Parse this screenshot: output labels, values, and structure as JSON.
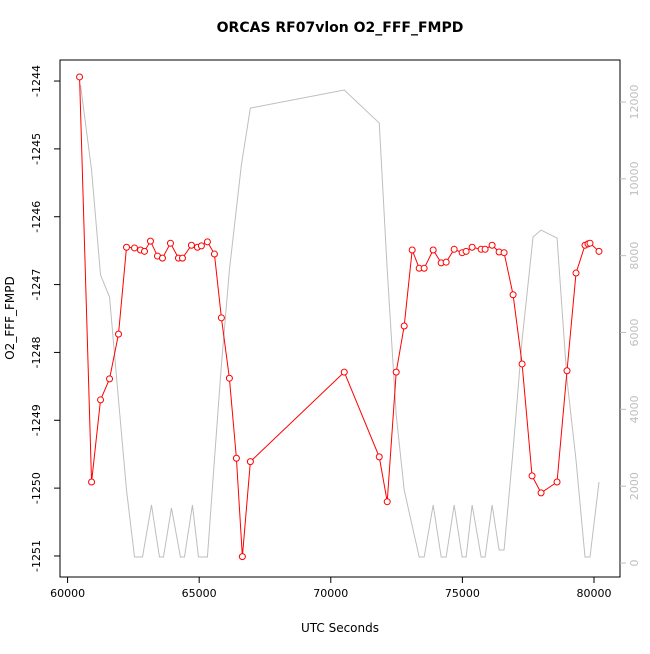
{
  "chart_data": {
    "type": "line",
    "title": "ORCAS RF07vlon O2_FFF_FMPD",
    "x_label": "UTC Seconds",
    "y_label": "O2_FFF_FMPD",
    "xlim": [
      59712,
      80988
    ],
    "xticks": [
      60000,
      65000,
      70000,
      75000,
      80000
    ],
    "ylim": [
      -1251.31,
      -1243.69
    ],
    "yticks": [
      -1251,
      -1250,
      -1249,
      -1248,
      -1247,
      -1246,
      -1245,
      -1244
    ],
    "y2lim": [
      -364,
      13093
    ],
    "y2ticks": [
      0,
      2000,
      4000,
      6000,
      8000,
      10000,
      12000
    ],
    "y2color": "#bebebe",
    "series": [
      {
        "color": "#bebebe",
        "axis": "y2",
        "markers": false,
        "x": [
          60493,
          60911,
          61252,
          61594,
          61935,
          62239,
          62543,
          62846,
          63188,
          63491,
          63643,
          63947,
          64288,
          64440,
          64744,
          64972,
          65313,
          65579,
          65844,
          66148,
          66603,
          66945,
          70512,
          71841,
          72144,
          72486,
          72789,
          73359,
          73548,
          73890,
          74194,
          74383,
          74687,
          74991,
          75142,
          75370,
          75712,
          75863,
          76129,
          76395,
          76584,
          76926,
          77268,
          77685,
          77989,
          78596,
          78975,
          79317,
          79658,
          79848,
          80190
        ],
        "values": [
          12441,
          10229,
          7496,
          6924,
          4243,
          1900,
          156,
          156,
          1510,
          156,
          156,
          1432,
          156,
          156,
          1510,
          156,
          156,
          2681,
          5154,
          7626,
          10359,
          11843,
          12311,
          11452,
          7626,
          3852,
          1900,
          156,
          156,
          1510,
          156,
          156,
          1510,
          156,
          156,
          1510,
          156,
          156,
          1510,
          338,
          338,
          2941,
          5804,
          8485,
          8667,
          8459,
          4763,
          2681,
          156,
          156,
          2108
        ]
      },
      {
        "color": "#ff0000",
        "axis": "y",
        "markers": true,
        "x": [
          60455,
          60911,
          61252,
          61594,
          61935,
          62239,
          62543,
          62770,
          62922,
          63150,
          63416,
          63605,
          63909,
          64213,
          64364,
          64706,
          64934,
          65085,
          65313,
          65579,
          65844,
          66148,
          66414,
          66641,
          66945,
          70512,
          71841,
          72144,
          72486,
          72789,
          73093,
          73359,
          73548,
          73890,
          74194,
          74383,
          74687,
          74991,
          75142,
          75370,
          75712,
          75863,
          76129,
          76395,
          76584,
          76926,
          77268,
          77647,
          77989,
          78596,
          78975,
          79317,
          79658,
          79772,
          79848,
          80190
        ],
        "values": [
          -1243.94,
          -1249.91,
          -1248.7,
          -1248.39,
          -1247.73,
          -1246.45,
          -1246.46,
          -1246.49,
          -1246.51,
          -1246.36,
          -1246.58,
          -1246.61,
          -1246.39,
          -1246.61,
          -1246.61,
          -1246.42,
          -1246.45,
          -1246.43,
          -1246.37,
          -1246.55,
          -1247.49,
          -1248.38,
          -1249.56,
          -1251.01,
          -1249.61,
          -1248.29,
          -1249.54,
          -1250.2,
          -1248.29,
          -1247.61,
          -1246.49,
          -1246.76,
          -1246.76,
          -1246.49,
          -1246.68,
          -1246.67,
          -1246.48,
          -1246.53,
          -1246.51,
          -1246.45,
          -1246.48,
          -1246.48,
          -1246.42,
          -1246.52,
          -1246.53,
          -1247.15,
          -1248.17,
          -1249.82,
          -1250.07,
          -1249.91,
          -1248.27,
          -1246.83,
          -1246.42,
          -1246.4,
          -1246.39,
          -1246.51
        ]
      }
    ]
  }
}
